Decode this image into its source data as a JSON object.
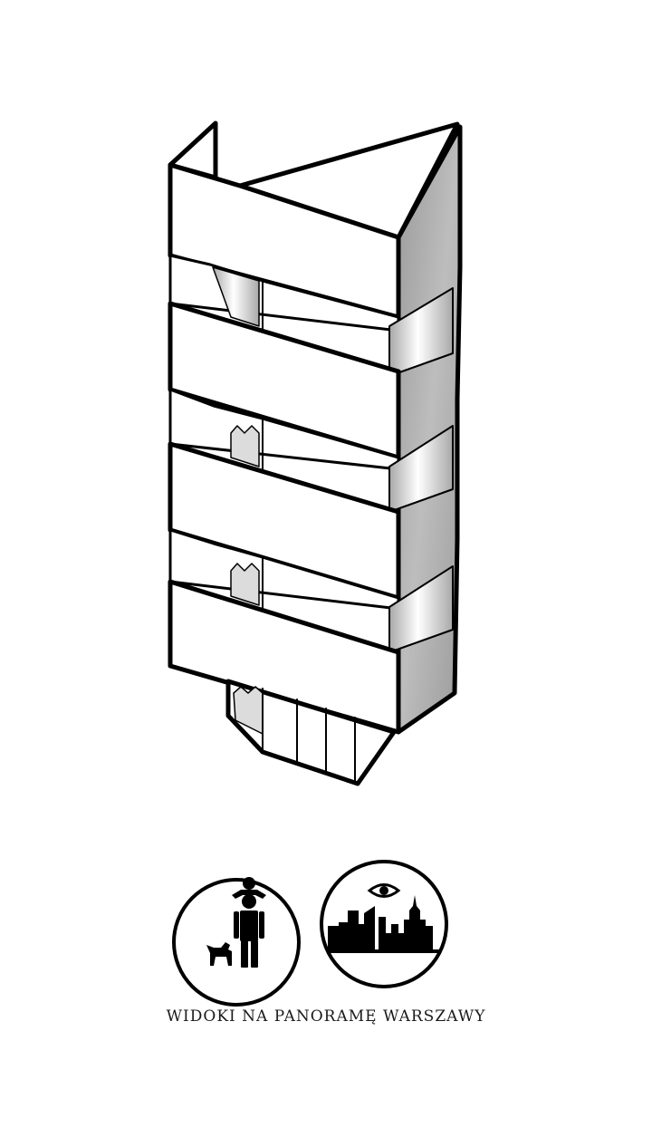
{
  "caption": "WIDOKI NA PANORAMĘ WARSZAWY",
  "icons": {
    "left": "family-with-dog-icon",
    "right": "city-skyline-view-icon"
  },
  "colors": {
    "line": "#000000",
    "face": "#ffffff",
    "shade": "#b3b3b3",
    "dark_shade": "#8c8c8c"
  }
}
